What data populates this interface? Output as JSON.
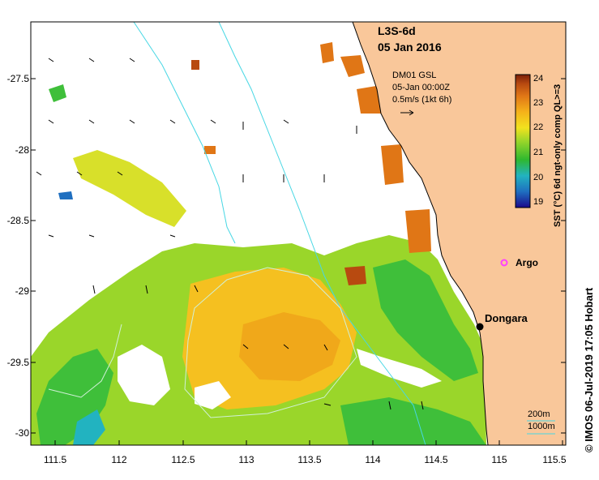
{
  "product": {
    "title": "L3S-6d",
    "date": "05 Jan 2016"
  },
  "current_legend": {
    "source": "DM01 GSL",
    "time": "05-Jan 00:00Z",
    "scale": "0.5m/s (1kt 6h)"
  },
  "colorbar": {
    "label": "SST (°C) 6d ngt-only comp QL>=3",
    "ticks": [
      "24",
      "23",
      "22",
      "21",
      "20",
      "19"
    ],
    "min": 19,
    "max": 24,
    "colors": [
      "#1b0a8c",
      "#1f6fc0",
      "#22b3c0",
      "#2fb82f",
      "#9ad62a",
      "#f2e21e",
      "#f5b21a",
      "#e07616",
      "#b84a10",
      "#7a1e08"
    ]
  },
  "axes": {
    "y_ticks": [
      "-27.5",
      "-28",
      "-28.5",
      "-29",
      "-29.5",
      "-30"
    ],
    "x_ticks": [
      "111.5",
      "112",
      "112.5",
      "113",
      "113.5",
      "114",
      "114.5",
      "115",
      "115.5"
    ],
    "lon_range": [
      111.3,
      115.65
    ],
    "lat_range": [
      -30.05,
      -27.05
    ]
  },
  "places": {
    "argo": "Argo",
    "dongara": "Dongara"
  },
  "depth_legend": {
    "contour_200": "200m",
    "contour_1000": "1000m"
  },
  "credit": "© IMOS 06-Jul-2019 17:05 Hobart",
  "colors": {
    "land": "#f9c79a",
    "coastline": "#000000",
    "isobath_200": "#47d7e4",
    "isobath_1000": "#9ee9ee",
    "argo": "#ff40ff",
    "eddy": "#d0f0d8"
  }
}
